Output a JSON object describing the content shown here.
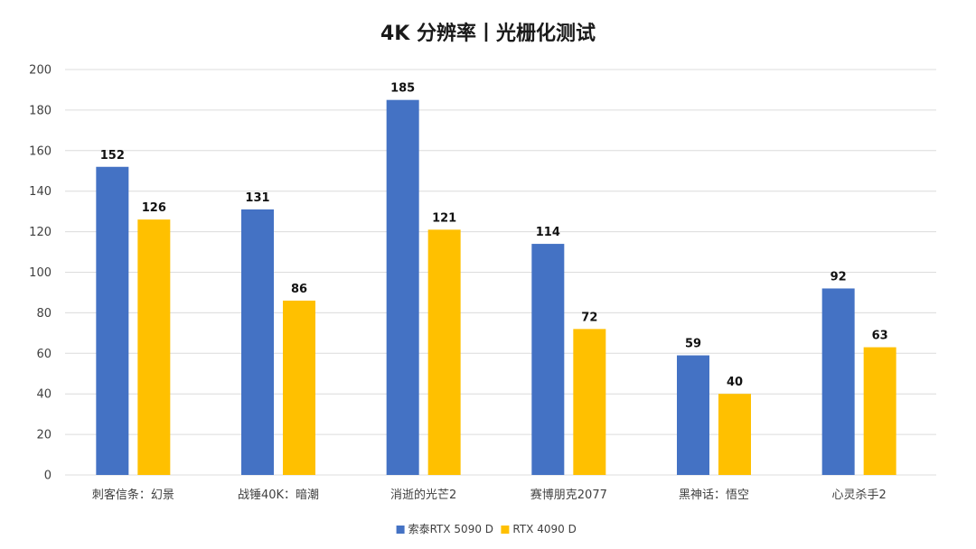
{
  "chart_data": {
    "type": "bar",
    "title": "4K 分辨率丨光栅化测试",
    "categories": [
      "刺客信条：幻景",
      "战锤40K：暗潮",
      "消逝的光芒2",
      "赛博朋克2077",
      "黑神话：悟空",
      "心灵杀手2"
    ],
    "series": [
      {
        "name": "索泰RTX 5090 D",
        "color": "#4472C4",
        "values": [
          152,
          131,
          185,
          114,
          59,
          92
        ]
      },
      {
        "name": "RTX 4090 D",
        "color": "#FFC000",
        "values": [
          126,
          86,
          121,
          72,
          40,
          63
        ]
      }
    ],
    "ylim": [
      0,
      200
    ],
    "yticks": [
      0,
      20,
      40,
      60,
      80,
      100,
      120,
      140,
      160,
      180,
      200
    ],
    "grid": true,
    "legend_position": "bottom-center",
    "data_labels": true
  }
}
